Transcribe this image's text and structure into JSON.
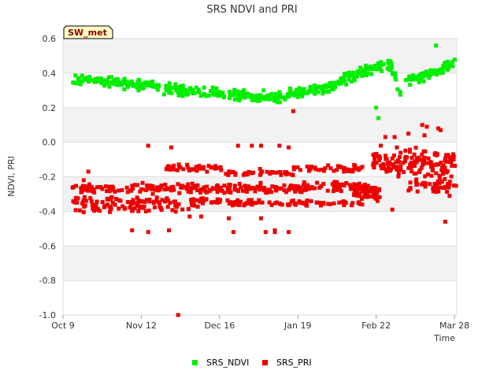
{
  "chart_data": {
    "type": "scatter",
    "title": "SRS NDVI and PRI",
    "badge": "SW_met",
    "xlabel": "Time",
    "ylabel": "NDVI, PRI",
    "ylim": [
      -1.0,
      0.6
    ],
    "xlim_days": [
      0,
      171
    ],
    "y_ticks": [
      {
        "label": "0.6",
        "value": 0.6
      },
      {
        "label": "0.4",
        "value": 0.4
      },
      {
        "label": "0.2",
        "value": 0.2
      },
      {
        "label": "0.0",
        "value": 0.0
      },
      {
        "label": "-0.2",
        "value": -0.2
      },
      {
        "label": "-0.4",
        "value": -0.4
      },
      {
        "label": "-0.6",
        "value": -0.6
      },
      {
        "label": "-0.8",
        "value": -0.8
      },
      {
        "label": "-1.0",
        "value": -1.0
      }
    ],
    "x_ticks": [
      {
        "label": "Oct 9",
        "day": 0
      },
      {
        "label": "Nov 12",
        "day": 34
      },
      {
        "label": "Dec 16",
        "day": 68
      },
      {
        "label": "Jan 19",
        "day": 102
      },
      {
        "label": "Feb 22",
        "day": 136
      },
      {
        "label": "Mar 28",
        "day": 170
      }
    ],
    "grid": true,
    "legend_position": "bottom-center",
    "series": [
      {
        "name": "SRS_NDVI",
        "color": "#00ee00",
        "trend": [
          [
            4,
            0.36
          ],
          [
            10,
            0.37
          ],
          [
            15,
            0.355
          ],
          [
            20,
            0.355
          ],
          [
            25,
            0.34
          ],
          [
            30,
            0.335
          ],
          [
            35,
            0.33
          ],
          [
            40,
            0.32
          ],
          [
            45,
            0.31
          ],
          [
            50,
            0.3
          ],
          [
            55,
            0.295
          ],
          [
            60,
            0.29
          ],
          [
            65,
            0.285
          ],
          [
            70,
            0.28
          ],
          [
            75,
            0.275
          ],
          [
            80,
            0.27
          ],
          [
            85,
            0.265
          ],
          [
            90,
            0.265
          ],
          [
            95,
            0.27
          ],
          [
            100,
            0.28
          ],
          [
            105,
            0.29
          ],
          [
            110,
            0.3
          ],
          [
            115,
            0.32
          ],
          [
            120,
            0.35
          ],
          [
            125,
            0.38
          ],
          [
            130,
            0.41
          ],
          [
            134,
            0.43
          ],
          [
            138,
            0.44
          ],
          [
            140,
            0.45
          ],
          [
            142,
            0.44
          ],
          [
            144,
            0.4
          ],
          [
            146,
            0.28
          ],
          [
            148,
            0.34
          ],
          [
            150,
            0.36
          ],
          [
            152,
            0.37
          ],
          [
            155,
            0.38
          ],
          [
            158,
            0.39
          ],
          [
            160,
            0.4
          ],
          [
            163,
            0.41
          ],
          [
            166,
            0.43
          ],
          [
            168,
            0.45
          ],
          [
            171,
            0.46
          ]
        ],
        "spread": 0.022,
        "count": 520,
        "extras": [
          [
            162,
            0.56
          ],
          [
            101,
            0.29
          ],
          [
            136,
            0.2
          ],
          [
            137,
            0.14
          ]
        ]
      },
      {
        "name": "SRS_PRI",
        "color": "#ee0000",
        "bands": [
          {
            "from": 4,
            "to": 70,
            "center": -0.27,
            "spread": 0.02,
            "count": 120
          },
          {
            "from": 4,
            "to": 70,
            "center": -0.34,
            "spread": 0.015,
            "count": 80
          },
          {
            "from": 4,
            "to": 60,
            "center": -0.38,
            "spread": 0.02,
            "count": 60
          },
          {
            "from": 44,
            "to": 70,
            "center": -0.15,
            "spread": 0.015,
            "count": 40
          },
          {
            "from": 70,
            "to": 100,
            "center": -0.27,
            "spread": 0.02,
            "count": 60
          },
          {
            "from": 70,
            "to": 100,
            "center": -0.18,
            "spread": 0.015,
            "count": 40
          },
          {
            "from": 70,
            "to": 100,
            "center": -0.35,
            "spread": 0.015,
            "count": 40
          },
          {
            "from": 100,
            "to": 130,
            "center": -0.26,
            "spread": 0.02,
            "count": 60
          },
          {
            "from": 100,
            "to": 130,
            "center": -0.15,
            "spread": 0.015,
            "count": 40
          },
          {
            "from": 100,
            "to": 130,
            "center": -0.35,
            "spread": 0.015,
            "count": 40
          },
          {
            "from": 126,
            "to": 138,
            "center": -0.29,
            "spread": 0.035,
            "count": 60
          },
          {
            "from": 134,
            "to": 171,
            "center": -0.12,
            "spread": 0.06,
            "count": 140
          },
          {
            "from": 150,
            "to": 171,
            "center": -0.25,
            "spread": 0.035,
            "count": 45
          }
        ],
        "extras": [
          [
            37,
            -0.02
          ],
          [
            47,
            -0.03
          ],
          [
            76,
            -0.02
          ],
          [
            82,
            -0.02
          ],
          [
            86,
            -0.02
          ],
          [
            94,
            -0.02
          ],
          [
            98,
            -0.03
          ],
          [
            98,
            -0.52
          ],
          [
            50,
            -1.0
          ],
          [
            30,
            -0.51
          ],
          [
            37,
            -0.52
          ],
          [
            46,
            -0.51
          ],
          [
            74,
            -0.52
          ],
          [
            88,
            -0.52
          ],
          [
            92,
            -0.51
          ],
          [
            92,
            -0.52
          ],
          [
            55,
            -0.43
          ],
          [
            60,
            -0.43
          ],
          [
            72,
            -0.44
          ],
          [
            86,
            -0.44
          ],
          [
            100,
            0.18
          ],
          [
            144,
            0.03
          ],
          [
            150,
            0.05
          ],
          [
            156,
            0.1
          ],
          [
            157,
            0.04
          ],
          [
            158,
            0.09
          ],
          [
            163,
            0.08
          ],
          [
            164,
            0.07
          ],
          [
            166,
            -0.46
          ],
          [
            143,
            -0.39
          ],
          [
            11,
            -0.17
          ],
          [
            9,
            -0.22
          ],
          [
            122,
            -0.17
          ],
          [
            138,
            -0.02
          ],
          [
            140,
            0.03
          ],
          [
            145,
            -0.03
          ]
        ]
      }
    ]
  }
}
